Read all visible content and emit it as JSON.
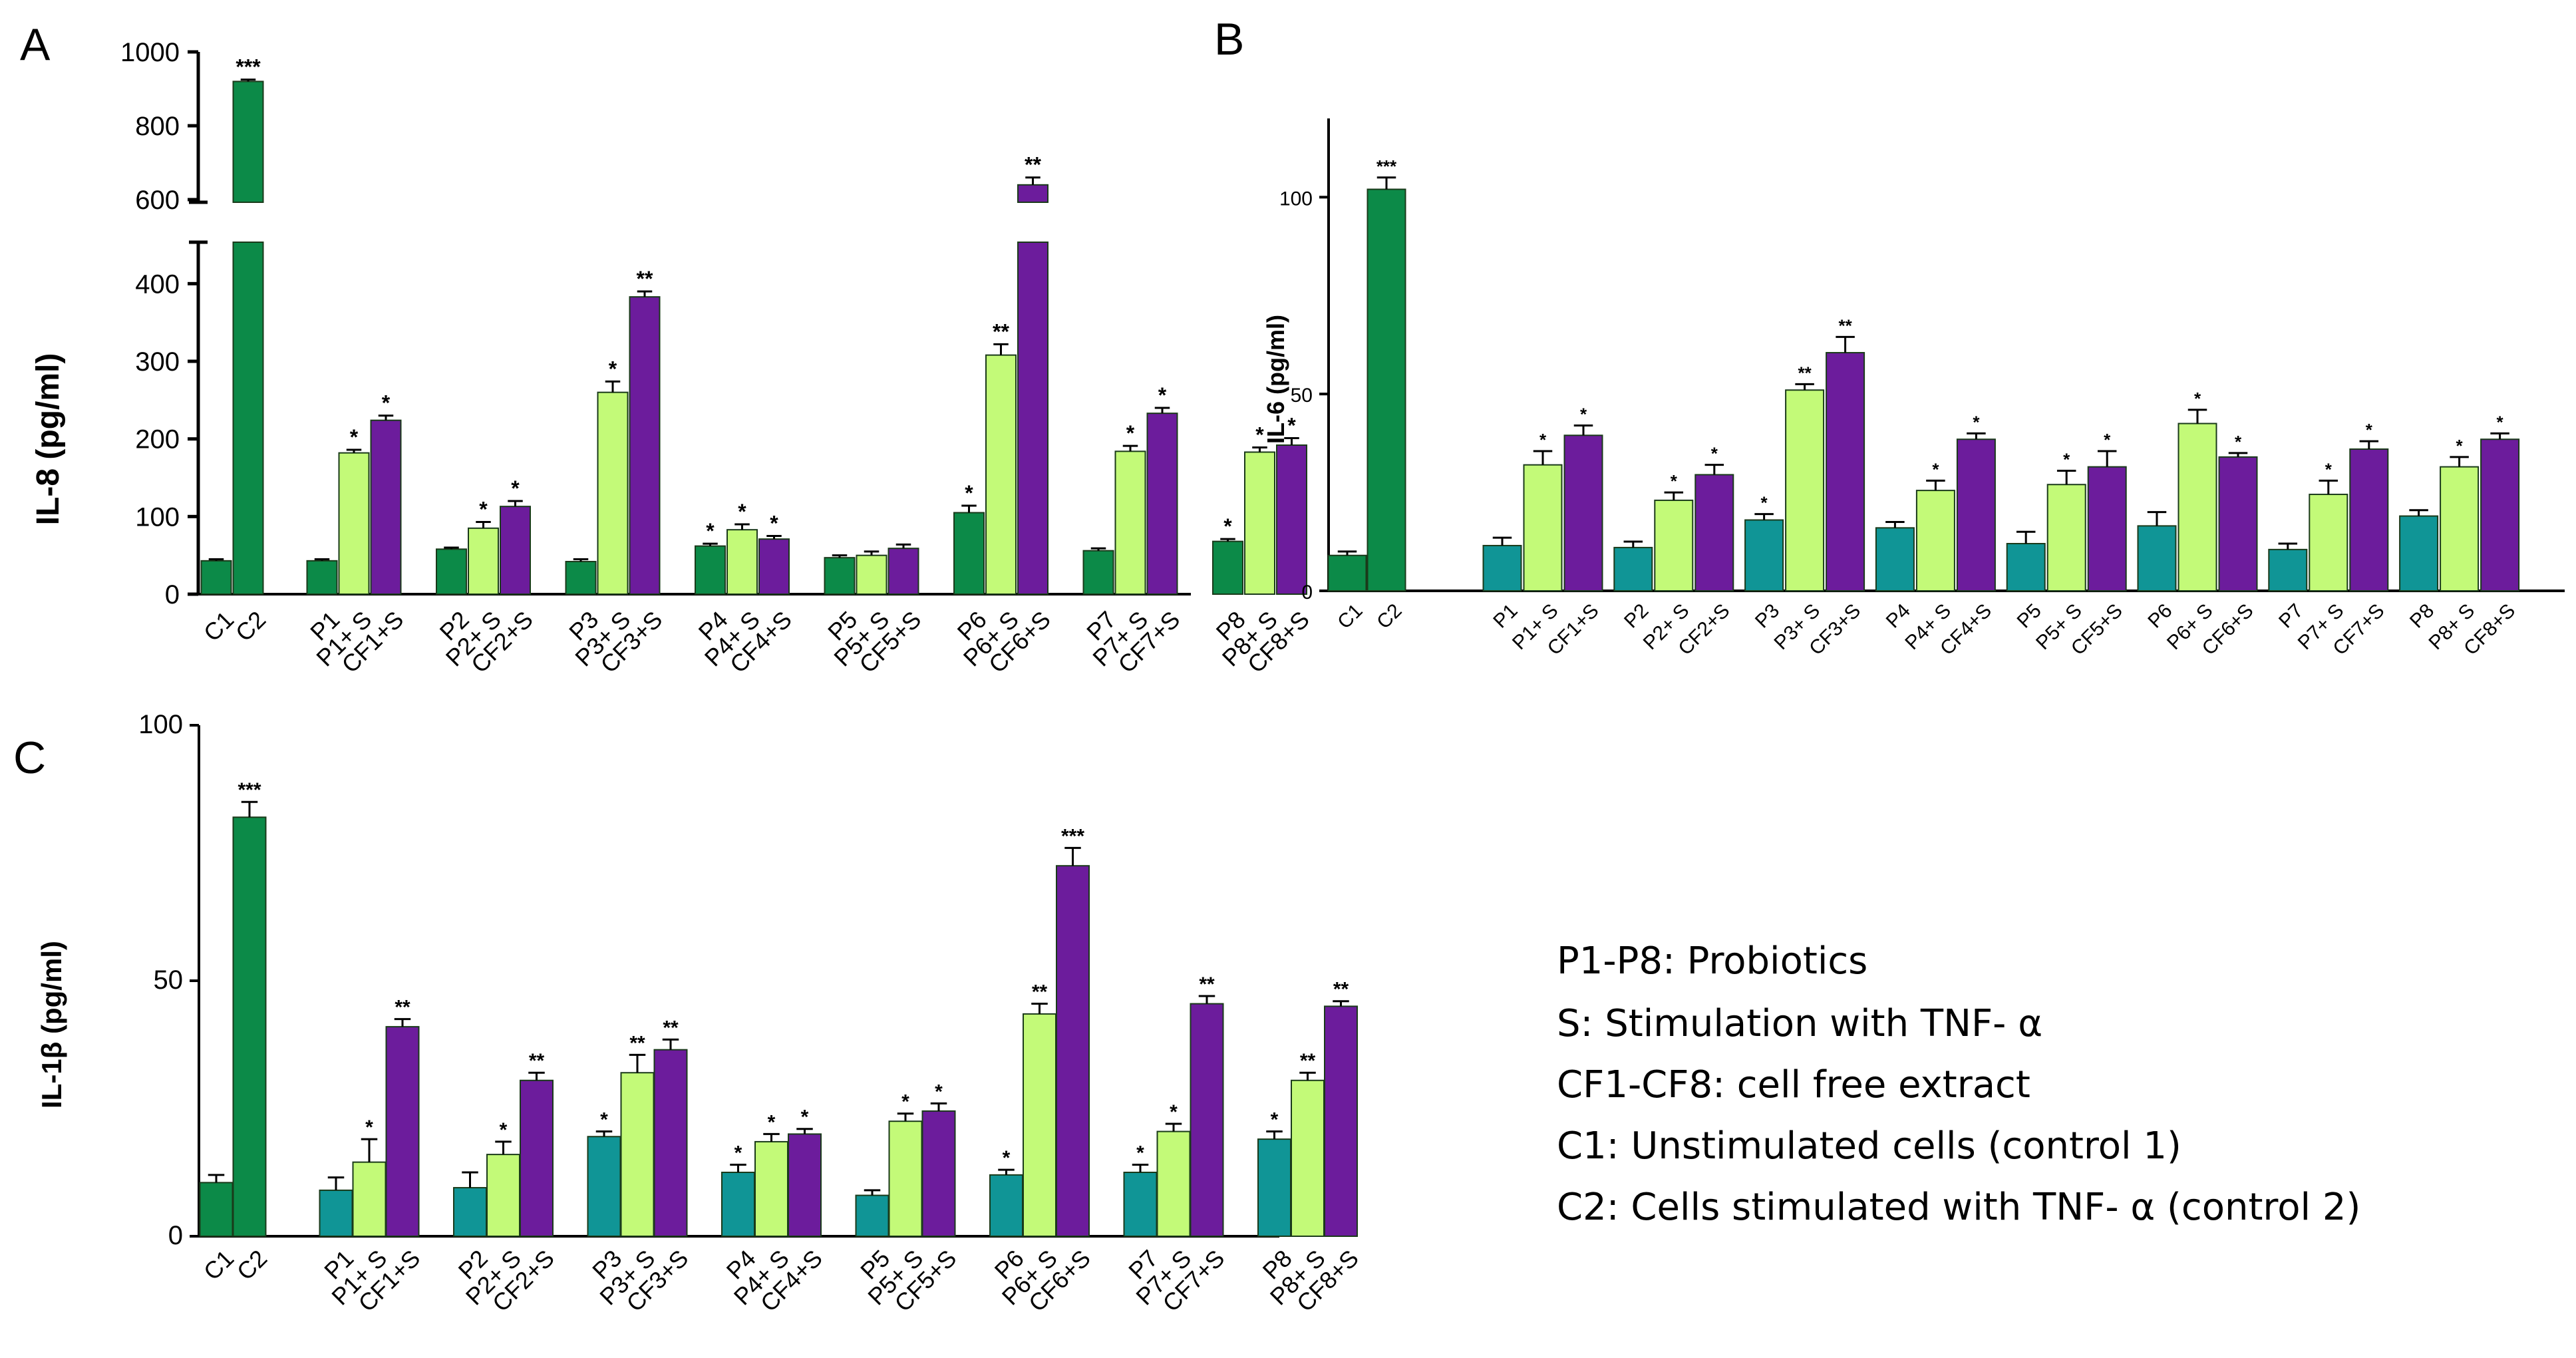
{
  "colors": {
    "dark_green": "#0c8a48",
    "teal": "#109596",
    "light_green": "#c3fa78",
    "purple": "#6c1c9c",
    "axis": "#000000"
  },
  "legend_lines": [
    "P1-P8: Probiotics",
    "S: Stimulation with TNF- α",
    "CF1-CF8: cell free extract",
    "C1: Unstimulated cells (control 1)",
    "C2: Cells stimulated with TNF- α (control 2)"
  ],
  "chart_data": [
    {
      "id": "A",
      "panel_label": "A",
      "type": "bar",
      "ylabel": "IL-8 (pg/ml)",
      "broken_axis": true,
      "ylim_lower": [
        0,
        450
      ],
      "ylim_upper": [
        600,
        1000
      ],
      "yticks_lower": [
        "0",
        "100",
        "200",
        "300",
        "400"
      ],
      "yticks_upper": [
        "600",
        "800",
        "1000"
      ],
      "yticks_lower_values": [
        0,
        100,
        200,
        300,
        400
      ],
      "yticks_upper_values": [
        600,
        800,
        1000
      ],
      "control_color": "dark_green",
      "probiotic_color": "dark_green",
      "controls": [
        {
          "label": "C1",
          "value": 43,
          "err": 2,
          "sig": ""
        },
        {
          "label": "C2",
          "value": 920,
          "err": 5,
          "sig": "***"
        }
      ],
      "groups": [
        {
          "bars": [
            {
              "label": "P1",
              "value": 43,
              "err": 2,
              "sig": ""
            },
            {
              "label": "P1+ S",
              "value": 182,
              "err": 4,
              "sig": "*"
            },
            {
              "label": "CF1+S",
              "value": 224,
              "err": 6,
              "sig": "*"
            }
          ]
        },
        {
          "bars": [
            {
              "label": "P2",
              "value": 58,
              "err": 2,
              "sig": ""
            },
            {
              "label": "P2+ S",
              "value": 85,
              "err": 8,
              "sig": "*"
            },
            {
              "label": "CF2+S",
              "value": 113,
              "err": 7,
              "sig": "*"
            }
          ]
        },
        {
          "bars": [
            {
              "label": "P3",
              "value": 42,
              "err": 3,
              "sig": ""
            },
            {
              "label": "P3+ S",
              "value": 260,
              "err": 14,
              "sig": "*"
            },
            {
              "label": "CF3+S",
              "value": 383,
              "err": 7,
              "sig": "**"
            }
          ]
        },
        {
          "bars": [
            {
              "label": "P4",
              "value": 62,
              "err": 3,
              "sig": "*"
            },
            {
              "label": "P4+ S",
              "value": 83,
              "err": 7,
              "sig": "*"
            },
            {
              "label": "CF4+S",
              "value": 71,
              "err": 4,
              "sig": "*"
            }
          ]
        },
        {
          "bars": [
            {
              "label": "P5",
              "value": 47,
              "err": 3,
              "sig": ""
            },
            {
              "label": "P5+ S",
              "value": 50,
              "err": 5,
              "sig": ""
            },
            {
              "label": "CF5+S",
              "value": 59,
              "err": 5,
              "sig": ""
            }
          ]
        },
        {
          "bars": [
            {
              "label": "P6",
              "value": 105,
              "err": 9,
              "sig": "*"
            },
            {
              "label": "P6+ S",
              "value": 308,
              "err": 14,
              "sig": "**"
            },
            {
              "label": "CF6+S",
              "value": 640,
              "err": 20,
              "sig": "**"
            }
          ]
        },
        {
          "bars": [
            {
              "label": "P7",
              "value": 56,
              "err": 3,
              "sig": ""
            },
            {
              "label": "P7+ S",
              "value": 184,
              "err": 7,
              "sig": "*"
            },
            {
              "label": "CF7+S",
              "value": 233,
              "err": 7,
              "sig": "*"
            }
          ]
        },
        {
          "bars": [
            {
              "label": "P8",
              "value": 68,
              "err": 3,
              "sig": "*"
            },
            {
              "label": "P8+ S",
              "value": 183,
              "err": 6,
              "sig": "*"
            },
            {
              "label": "CF8+S",
              "value": 192,
              "err": 9,
              "sig": "*"
            }
          ]
        }
      ]
    },
    {
      "id": "B",
      "panel_label": "B",
      "type": "bar",
      "ylabel": "IL-6 (pg/ml)",
      "broken_axis": false,
      "ylim": [
        0,
        120
      ],
      "yticks": [
        "0",
        "50",
        "100"
      ],
      "ytick_values": [
        0,
        50,
        100
      ],
      "control_color": "dark_green",
      "probiotic_color": "teal",
      "controls": [
        {
          "label": "C1",
          "value": 9,
          "err": 1,
          "sig": ""
        },
        {
          "label": "C2",
          "value": 102,
          "err": 3,
          "sig": "***"
        }
      ],
      "groups": [
        {
          "bars": [
            {
              "label": "P1",
              "value": 11.5,
              "err": 2,
              "sig": ""
            },
            {
              "label": "P1+ S",
              "value": 32,
              "err": 3.5,
              "sig": "*"
            },
            {
              "label": "CF1+S",
              "value": 39.5,
              "err": 2.5,
              "sig": "*"
            }
          ]
        },
        {
          "bars": [
            {
              "label": "P2",
              "value": 11,
              "err": 1.5,
              "sig": ""
            },
            {
              "label": "P2+ S",
              "value": 23,
              "err": 2,
              "sig": "*"
            },
            {
              "label": "CF2+S",
              "value": 29.5,
              "err": 2.5,
              "sig": "*"
            }
          ]
        },
        {
          "bars": [
            {
              "label": "P3",
              "value": 18,
              "err": 1.5,
              "sig": "*"
            },
            {
              "label": "P3+ S",
              "value": 51,
              "err": 1.5,
              "sig": "**"
            },
            {
              "label": "CF3+S",
              "value": 60.5,
              "err": 4,
              "sig": "**"
            }
          ]
        },
        {
          "bars": [
            {
              "label": "P4",
              "value": 16,
              "err": 1.5,
              "sig": ""
            },
            {
              "label": "P4+ S",
              "value": 25.5,
              "err": 2.5,
              "sig": "*"
            },
            {
              "label": "CF4+S",
              "value": 38.5,
              "err": 1.5,
              "sig": "*"
            }
          ]
        },
        {
          "bars": [
            {
              "label": "P5",
              "value": 12,
              "err": 3,
              "sig": ""
            },
            {
              "label": "P5+ S",
              "value": 27,
              "err": 3.5,
              "sig": "*"
            },
            {
              "label": "CF5+S",
              "value": 31.5,
              "err": 4,
              "sig": "*"
            }
          ]
        },
        {
          "bars": [
            {
              "label": "P6",
              "value": 16.5,
              "err": 3.5,
              "sig": ""
            },
            {
              "label": "P6+ S",
              "value": 42.5,
              "err": 3.5,
              "sig": "*"
            },
            {
              "label": "CF6+S",
              "value": 34,
              "err": 1,
              "sig": "*"
            }
          ]
        },
        {
          "bars": [
            {
              "label": "P7",
              "value": 10.5,
              "err": 1.5,
              "sig": ""
            },
            {
              "label": "P7+ S",
              "value": 24.5,
              "err": 3.5,
              "sig": "*"
            },
            {
              "label": "CF7+S",
              "value": 36,
              "err": 2,
              "sig": "*"
            }
          ]
        },
        {
          "bars": [
            {
              "label": "P8",
              "value": 19,
              "err": 1.5,
              "sig": ""
            },
            {
              "label": "P8+ S",
              "value": 31.5,
              "err": 2.5,
              "sig": "*"
            },
            {
              "label": "CF8+S",
              "value": 38.5,
              "err": 1.5,
              "sig": "*"
            }
          ]
        }
      ]
    },
    {
      "id": "C",
      "panel_label": "C",
      "type": "bar",
      "ylabel": "IL-1β (pg/ml)",
      "broken_axis": false,
      "ylim": [
        0,
        100
      ],
      "yticks": [
        "0",
        "50",
        "100"
      ],
      "ytick_values": [
        0,
        50,
        100
      ],
      "control_color": "dark_green",
      "probiotic_color": "teal",
      "controls": [
        {
          "label": "C1",
          "value": 10.5,
          "err": 1.5,
          "sig": ""
        },
        {
          "label": "C2",
          "value": 82,
          "err": 3,
          "sig": "***"
        }
      ],
      "groups": [
        {
          "bars": [
            {
              "label": "P1",
              "value": 9,
              "err": 2.5,
              "sig": ""
            },
            {
              "label": "P1+ S",
              "value": 14.5,
              "err": 4.5,
              "sig": "*"
            },
            {
              "label": "CF1+S",
              "value": 41,
              "err": 1.5,
              "sig": "**"
            }
          ]
        },
        {
          "bars": [
            {
              "label": "P2",
              "value": 9.5,
              "err": 3,
              "sig": ""
            },
            {
              "label": "P2+ S",
              "value": 16,
              "err": 2.5,
              "sig": "*"
            },
            {
              "label": "CF2+S",
              "value": 30.5,
              "err": 1.5,
              "sig": "**"
            }
          ]
        },
        {
          "bars": [
            {
              "label": "P3",
              "value": 19.5,
              "err": 1,
              "sig": "*"
            },
            {
              "label": "P3+ S",
              "value": 32,
              "err": 3.5,
              "sig": "**"
            },
            {
              "label": "CF3+S",
              "value": 36.5,
              "err": 2,
              "sig": "**"
            }
          ]
        },
        {
          "bars": [
            {
              "label": "P4",
              "value": 12.5,
              "err": 1.5,
              "sig": "*"
            },
            {
              "label": "P4+ S",
              "value": 18.5,
              "err": 1.5,
              "sig": "*"
            },
            {
              "label": "CF4+S",
              "value": 20,
              "err": 1,
              "sig": "*"
            }
          ]
        },
        {
          "bars": [
            {
              "label": "P5",
              "value": 8,
              "err": 1,
              "sig": ""
            },
            {
              "label": "P5+ S",
              "value": 22.5,
              "err": 1.5,
              "sig": "*"
            },
            {
              "label": "CF5+S",
              "value": 24.5,
              "err": 1.5,
              "sig": "*"
            }
          ]
        },
        {
          "bars": [
            {
              "label": "P6",
              "value": 12,
              "err": 1,
              "sig": "*"
            },
            {
              "label": "P6+ S",
              "value": 43.5,
              "err": 2,
              "sig": "**"
            },
            {
              "label": "CF6+S",
              "value": 72.5,
              "err": 3.5,
              "sig": "***"
            }
          ]
        },
        {
          "bars": [
            {
              "label": "P7",
              "value": 12.5,
              "err": 1.5,
              "sig": "*"
            },
            {
              "label": "P7+ S",
              "value": 20.5,
              "err": 1.5,
              "sig": "*"
            },
            {
              "label": "CF7+S",
              "value": 45.5,
              "err": 1.5,
              "sig": "**"
            }
          ]
        },
        {
          "bars": [
            {
              "label": "P8",
              "value": 19,
              "err": 1.5,
              "sig": "*"
            },
            {
              "label": "P8+ S",
              "value": 30.5,
              "err": 1.5,
              "sig": "**"
            },
            {
              "label": "CF8+S",
              "value": 45,
              "err": 1,
              "sig": "**"
            }
          ]
        }
      ]
    }
  ]
}
